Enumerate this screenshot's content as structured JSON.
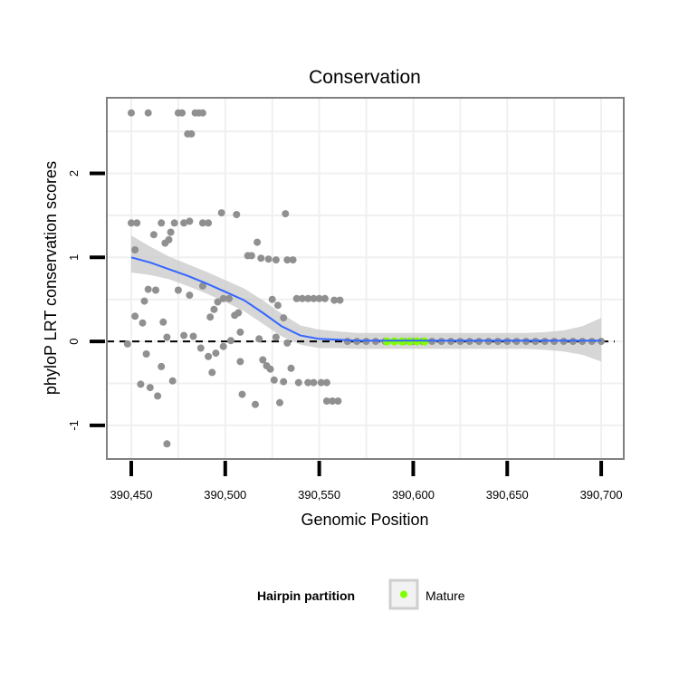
{
  "chart_data": {
    "type": "scatter",
    "title": "Conservation",
    "xlabel": "Genomic Position",
    "ylabel": "phyloP LRT conservation scores",
    "xlim": [
      390437,
      390712
    ],
    "ylim": [
      -1.4,
      2.9
    ],
    "x_ticks": [
      390450,
      390500,
      390550,
      390600,
      390650,
      390700
    ],
    "x_tick_labels": [
      "390,450",
      "390,500",
      "390,550",
      "390,600",
      "390,650",
      "390,700"
    ],
    "y_ticks": [
      -1,
      0,
      1,
      2
    ],
    "y_tick_labels": [
      "-1",
      "0",
      "1",
      "2"
    ],
    "reference_line": {
      "y": 0,
      "style": "dashed",
      "color": "#000000"
    },
    "colors": {
      "points": "#909090",
      "smooth": "#3366ff",
      "ribbon": "#c8c8c8",
      "mature": "#7fff00",
      "grid": "#f0f0f0",
      "frame": "#808080"
    },
    "points": [
      [
        390450,
        2.72
      ],
      [
        390459,
        2.72
      ],
      [
        390475,
        2.72
      ],
      [
        390477,
        2.72
      ],
      [
        390484,
        2.72
      ],
      [
        390486,
        2.72
      ],
      [
        390488,
        2.72
      ],
      [
        390480,
        2.47
      ],
      [
        390482,
        2.47
      ],
      [
        390450,
        1.41
      ],
      [
        390453,
        1.41
      ],
      [
        390466,
        1.41
      ],
      [
        390473,
        1.41
      ],
      [
        390478,
        1.41
      ],
      [
        390481,
        1.43
      ],
      [
        390488,
        1.41
      ],
      [
        390491,
        1.41
      ],
      [
        390498,
        1.53
      ],
      [
        390506,
        1.51
      ],
      [
        390532,
        1.52
      ],
      [
        390452,
        1.09
      ],
      [
        390462,
        1.27
      ],
      [
        390468,
        1.17
      ],
      [
        390470,
        1.21
      ],
      [
        390471,
        1.3
      ],
      [
        390512,
        1.02
      ],
      [
        390514,
        1.02
      ],
      [
        390517,
        1.18
      ],
      [
        390519,
        0.99
      ],
      [
        390523,
        0.98
      ],
      [
        390527,
        0.97
      ],
      [
        390533,
        0.97
      ],
      [
        390536,
        0.97
      ],
      [
        390457,
        0.48
      ],
      [
        390459,
        0.62
      ],
      [
        390463,
        0.61
      ],
      [
        390475,
        0.61
      ],
      [
        390481,
        0.55
      ],
      [
        390488,
        0.66
      ],
      [
        390494,
        0.38
      ],
      [
        390496,
        0.47
      ],
      [
        390499,
        0.51
      ],
      [
        390502,
        0.51
      ],
      [
        390505,
        0.31
      ],
      [
        390507,
        0.34
      ],
      [
        390525,
        0.5
      ],
      [
        390528,
        0.43
      ],
      [
        390538,
        0.51
      ],
      [
        390541,
        0.51
      ],
      [
        390544,
        0.51
      ],
      [
        390547,
        0.51
      ],
      [
        390550,
        0.51
      ],
      [
        390553,
        0.51
      ],
      [
        390558,
        0.49
      ],
      [
        390561,
        0.49
      ],
      [
        390452,
        0.3
      ],
      [
        390456,
        0.22
      ],
      [
        390467,
        0.23
      ],
      [
        390478,
        0.07
      ],
      [
        390483,
        0.06
      ],
      [
        390492,
        0.29
      ],
      [
        390508,
        0.11
      ],
      [
        390518,
        0.03
      ],
      [
        390527,
        0.05
      ],
      [
        390531,
        0.28
      ],
      [
        390448,
        -0.03
      ],
      [
        390469,
        0.05
      ],
      [
        390487,
        -0.08
      ],
      [
        390491,
        -0.18
      ],
      [
        390495,
        -0.14
      ],
      [
        390499,
        -0.06
      ],
      [
        390503,
        0.01
      ],
      [
        390533,
        -0.02
      ],
      [
        390458,
        -0.15
      ],
      [
        390466,
        -0.3
      ],
      [
        390493,
        -0.37
      ],
      [
        390508,
        -0.24
      ],
      [
        390520,
        -0.22
      ],
      [
        390522,
        -0.29
      ],
      [
        390524,
        -0.33
      ],
      [
        390535,
        -0.32
      ],
      [
        390455,
        -0.51
      ],
      [
        390460,
        -0.55
      ],
      [
        390472,
        -0.47
      ],
      [
        390526,
        -0.46
      ],
      [
        390531,
        -0.48
      ],
      [
        390539,
        -0.49
      ],
      [
        390544,
        -0.49
      ],
      [
        390547,
        -0.49
      ],
      [
        390551,
        -0.49
      ],
      [
        390554,
        -0.49
      ],
      [
        390464,
        -0.65
      ],
      [
        390509,
        -0.63
      ],
      [
        390516,
        -0.75
      ],
      [
        390529,
        -0.73
      ],
      [
        390554,
        -0.71
      ],
      [
        390557,
        -0.71
      ],
      [
        390560,
        -0.71
      ],
      [
        390469,
        -1.22
      ]
    ],
    "mature_points": [
      390586,
      390590,
      390594,
      390598,
      390602,
      390606
    ],
    "baseline_points": {
      "from": 390565,
      "to": 390700,
      "step": 5,
      "y": 0
    },
    "smooth": {
      "x": [
        390450,
        390460,
        390470,
        390480,
        390490,
        390500,
        390510,
        390520,
        390530,
        390540,
        390550,
        390560,
        390570,
        390580,
        390590,
        390600,
        390610,
        390620,
        390630,
        390640,
        390650,
        390660,
        390670,
        390680,
        390690,
        390700
      ],
      "y": [
        1.0,
        0.94,
        0.86,
        0.78,
        0.69,
        0.59,
        0.49,
        0.34,
        0.18,
        0.07,
        0.03,
        0.02,
        0.01,
        0.01,
        0.01,
        0.01,
        0.01,
        0.01,
        0.01,
        0.01,
        0.01,
        0.01,
        0.01,
        0.01,
        0.01,
        0.01
      ],
      "ymin": [
        0.82,
        0.79,
        0.74,
        0.66,
        0.57,
        0.47,
        0.36,
        0.21,
        0.06,
        -0.04,
        -0.08,
        -0.08,
        -0.09,
        -0.09,
        -0.09,
        -0.09,
        -0.09,
        -0.09,
        -0.09,
        -0.09,
        -0.09,
        -0.09,
        -0.1,
        -0.12,
        -0.16,
        -0.24
      ],
      "ymax": [
        1.26,
        1.13,
        1.01,
        0.92,
        0.83,
        0.73,
        0.63,
        0.49,
        0.33,
        0.19,
        0.14,
        0.12,
        0.1,
        0.1,
        0.1,
        0.1,
        0.1,
        0.1,
        0.1,
        0.1,
        0.1,
        0.1,
        0.11,
        0.13,
        0.18,
        0.28
      ]
    },
    "legend": {
      "title": "Hairpin partition",
      "entries": [
        {
          "label": "Mature",
          "color": "#7fff00"
        }
      ],
      "position": "bottom"
    }
  }
}
